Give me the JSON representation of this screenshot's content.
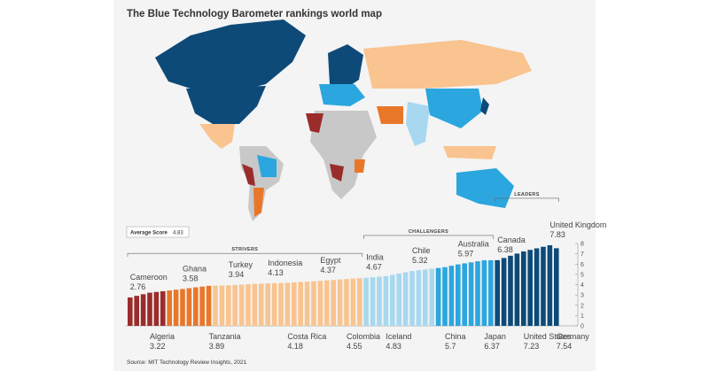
{
  "chart_data": {
    "type": "bar",
    "title": "The Blue Technology Barometer rankings world map",
    "source": "Source: MIT Technology Review Insights, 2021",
    "average_label": "Average Score",
    "average_value": 4.83,
    "ylim": [
      0,
      8
    ],
    "yticks": [
      0,
      1,
      2,
      3,
      4,
      5,
      6,
      7,
      8
    ],
    "groups": [
      {
        "name": "STRIVERS",
        "categories": [
          "Cameroon",
          null,
          null,
          "Algeria",
          null,
          null,
          null,
          null,
          "Ghana",
          null,
          null,
          null,
          "Tanzania",
          null,
          null,
          "Turkey",
          null,
          null,
          null,
          null,
          null,
          "Indonesia",
          null,
          null,
          "Costa Rica",
          null,
          null,
          null,
          null,
          "Egypt",
          null,
          null,
          null,
          "Colombia",
          null,
          null
        ],
        "values": [
          2.76,
          2.91,
          3.07,
          3.22,
          3.29,
          3.36,
          3.44,
          3.51,
          3.58,
          3.66,
          3.74,
          3.81,
          3.89,
          3.91,
          3.92,
          3.94,
          3.97,
          4.0,
          4.04,
          4.07,
          4.1,
          4.13,
          4.15,
          4.16,
          4.18,
          4.22,
          4.26,
          4.29,
          4.33,
          4.37,
          4.42,
          4.46,
          4.51,
          4.55,
          4.59,
          4.63
        ],
        "label_side": [
          "top",
          null,
          null,
          "bottom",
          null,
          null,
          null,
          null,
          "top",
          null,
          null,
          null,
          "bottom",
          null,
          null,
          "top",
          null,
          null,
          null,
          null,
          null,
          "top",
          null,
          null,
          "bottom",
          null,
          null,
          null,
          null,
          "top",
          null,
          null,
          null,
          "bottom",
          null,
          null
        ],
        "colors": [
          "#9b2c2c",
          "#9b2c2c",
          "#9b2c2c",
          "#9b2c2c",
          "#9b2c2c",
          "#9b2c2c",
          "#e8772a",
          "#e8772a",
          "#e8772a",
          "#e8772a",
          "#e8772a",
          "#e8772a",
          "#e8772a",
          "#f9c48f",
          "#f9c48f",
          "#f9c48f",
          "#f9c48f",
          "#f9c48f",
          "#f9c48f",
          "#f9c48f",
          "#f9c48f",
          "#f9c48f",
          "#f9c48f",
          "#f9c48f",
          "#f9c48f",
          "#f9c48f",
          "#f9c48f",
          "#f9c48f",
          "#f9c48f",
          "#f9c48f",
          "#f9c48f",
          "#f9c48f",
          "#f9c48f",
          "#f9c48f",
          "#f9c48f",
          "#f9c48f"
        ]
      },
      {
        "name": "CHALLENGERS",
        "categories": [
          "India",
          null,
          null,
          "Iceland",
          null,
          null,
          null,
          "Chile",
          null,
          null,
          null,
          null,
          "China",
          null,
          "Australia",
          null,
          null,
          null,
          "Japan",
          null
        ],
        "values": [
          4.67,
          4.72,
          4.78,
          4.83,
          4.95,
          5.08,
          5.2,
          5.32,
          5.4,
          5.47,
          5.55,
          5.62,
          5.7,
          5.84,
          5.97,
          6.07,
          6.17,
          6.27,
          6.37,
          6.37
        ],
        "label_side": [
          "top",
          null,
          null,
          "bottom",
          null,
          null,
          null,
          "top",
          null,
          null,
          null,
          null,
          "bottom",
          null,
          "top",
          null,
          null,
          null,
          "bottom",
          null
        ],
        "colors": [
          "#a7d8f0",
          "#a7d8f0",
          "#a7d8f0",
          "#a7d8f0",
          "#a7d8f0",
          "#a7d8f0",
          "#a7d8f0",
          "#a7d8f0",
          "#a7d8f0",
          "#a7d8f0",
          "#a7d8f0",
          "#2ba6de",
          "#2ba6de",
          "#2ba6de",
          "#2ba6de",
          "#2ba6de",
          "#2ba6de",
          "#2ba6de",
          "#2ba6de",
          "#2ba6de"
        ]
      },
      {
        "name": "LEADERS",
        "categories": [
          "Canada",
          null,
          null,
          null,
          "United States",
          null,
          null,
          null,
          "United Kingdom",
          "Germany"
        ],
        "values": [
          6.38,
          6.59,
          6.81,
          7.02,
          7.23,
          7.38,
          7.53,
          7.68,
          7.83,
          7.54
        ],
        "label_side": [
          "top",
          null,
          null,
          null,
          "bottom",
          null,
          null,
          null,
          "top",
          "bottom"
        ],
        "colors": [
          "#0d4a78",
          "#0d4a78",
          "#0d4a78",
          "#0d4a78",
          "#0d4a78",
          "#0d4a78",
          "#0d4a78",
          "#0d4a78",
          "#0d4a78",
          "#0d4a78"
        ]
      }
    ]
  }
}
